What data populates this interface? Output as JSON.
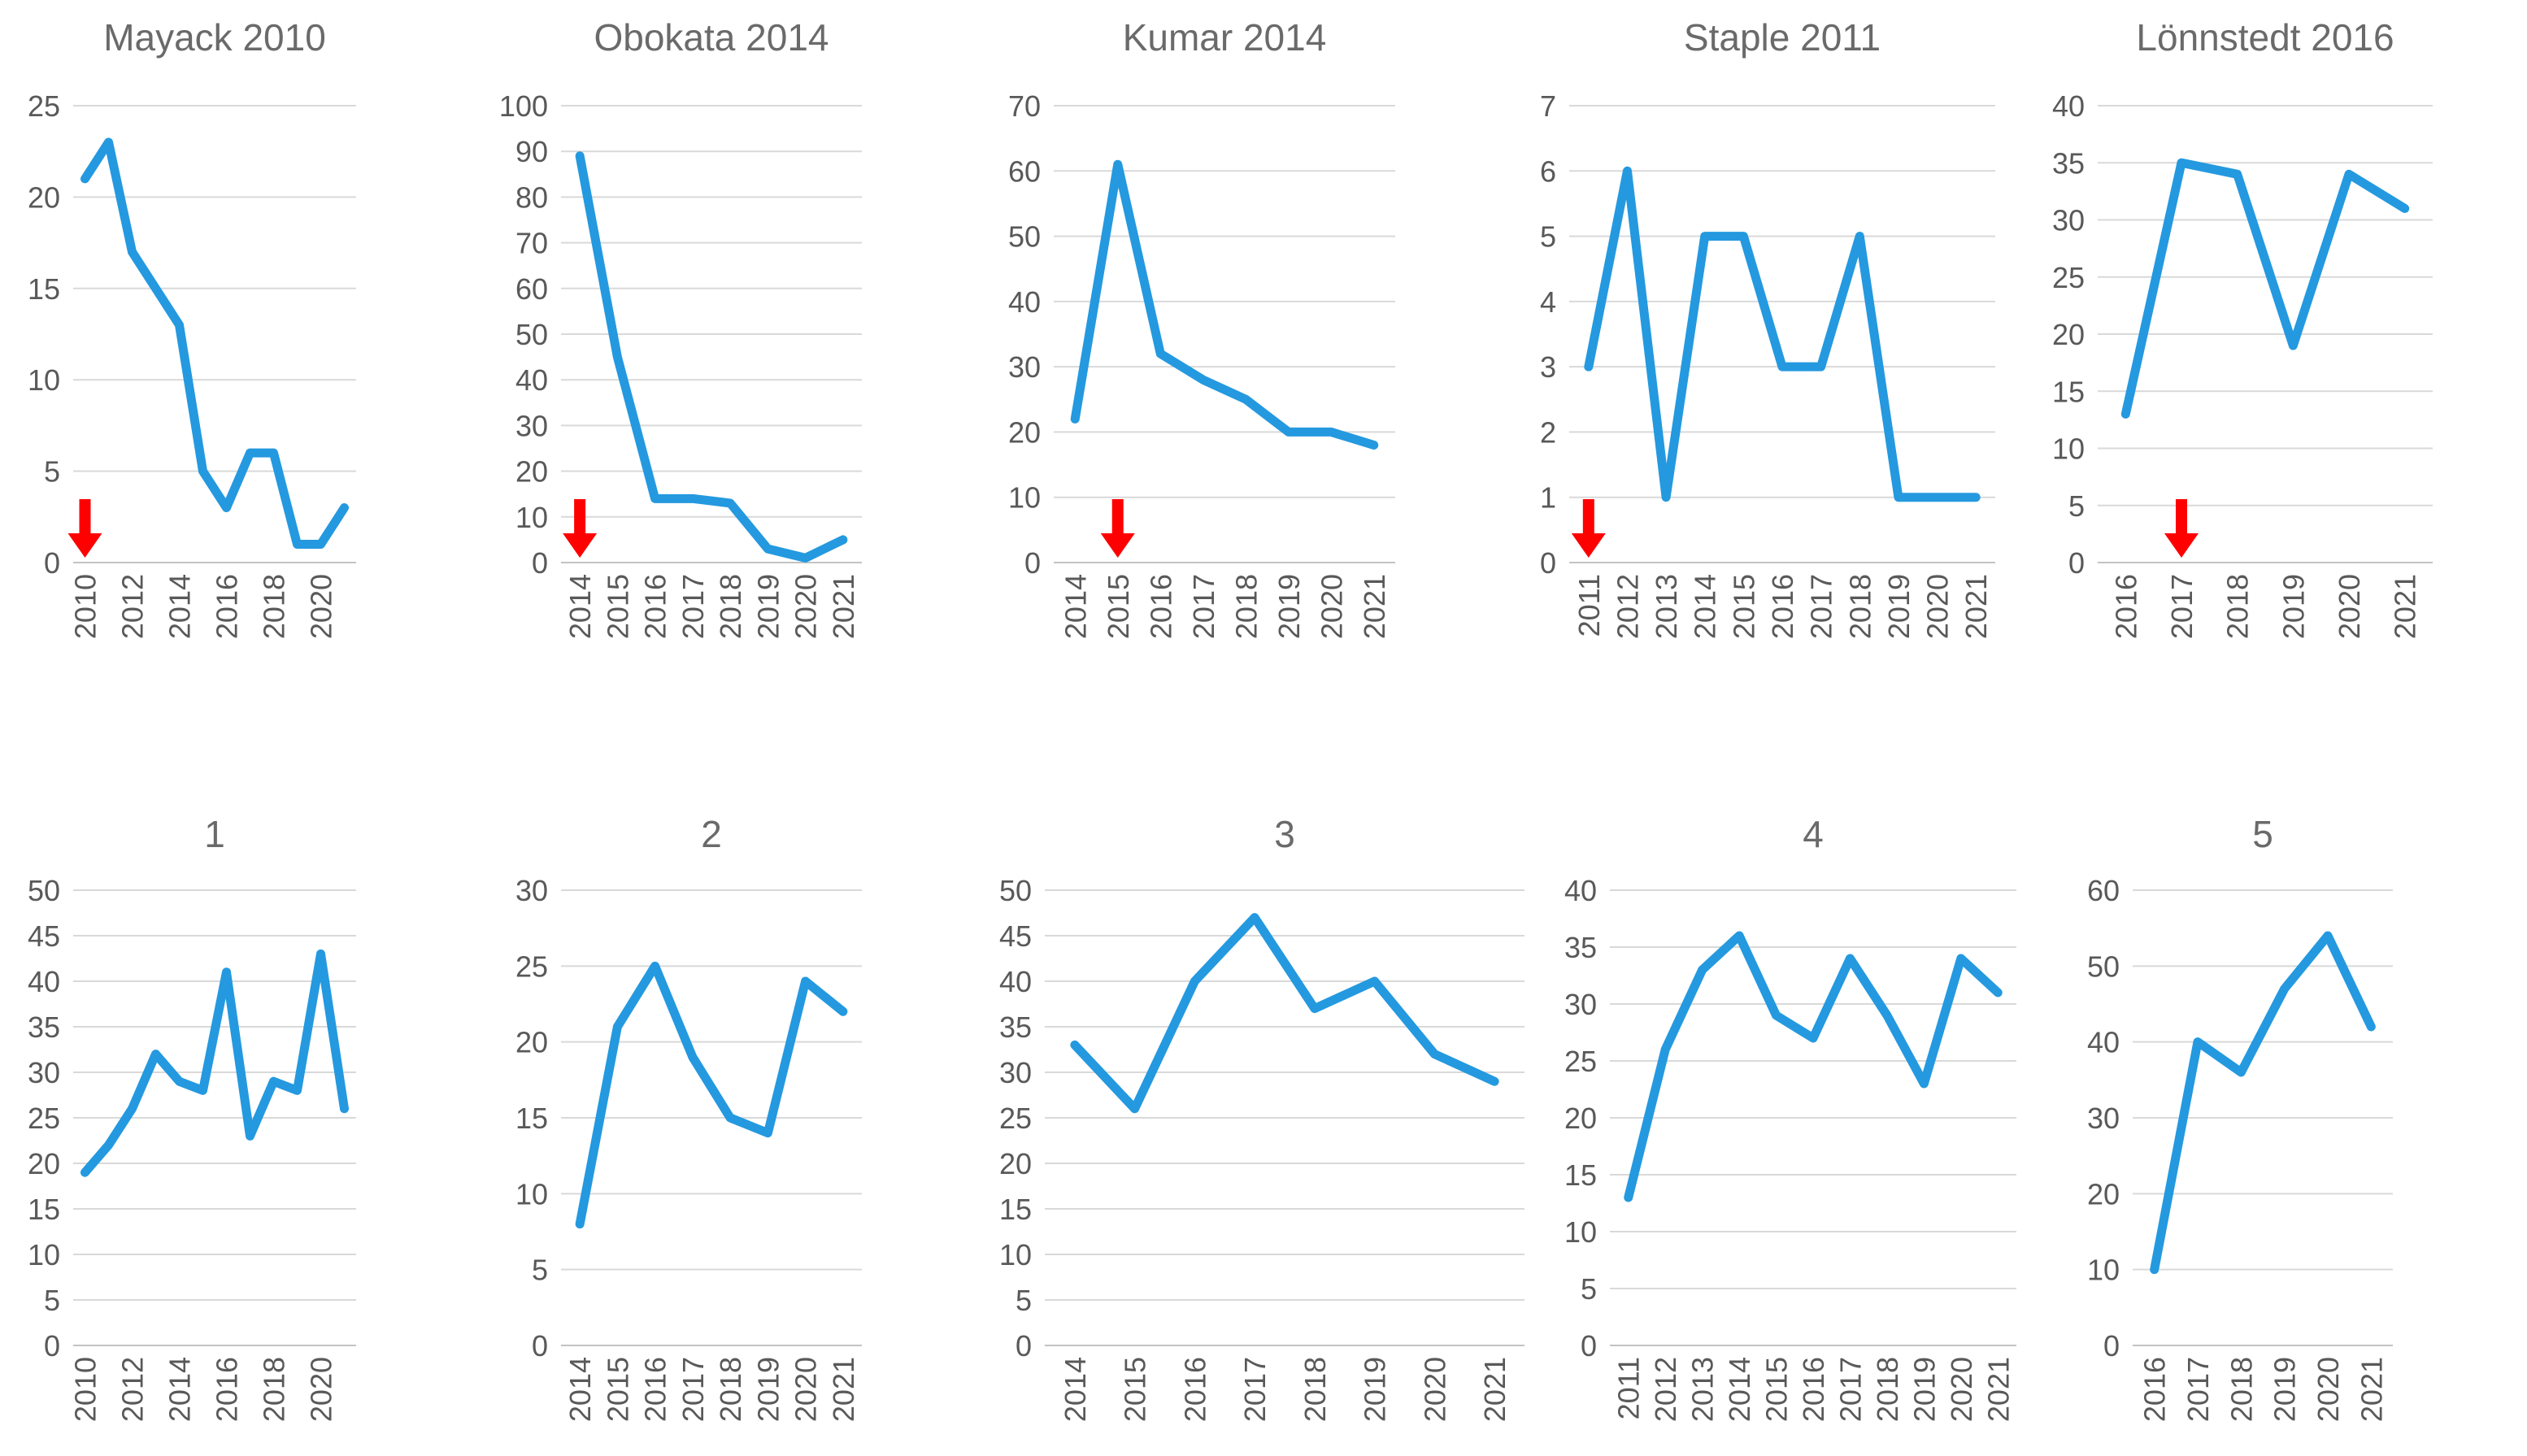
{
  "figure": {
    "description": "Grid of ten small line charts; top row shows citation counts of five retracted papers (red arrow marks retraction year), bottom row shows five numbered control charts"
  },
  "colors": {
    "line": "#2499df",
    "arrow": "#ff0000",
    "grid": "#d9d9d9",
    "zero_axis": "#c3c3c3",
    "tick_text": "#595959",
    "title_text": "#6a6a6a",
    "background": "#ffffff"
  },
  "chart_data": [
    {
      "id": "mayack-2010",
      "type": "line",
      "title": "Mayack 2010",
      "x": [
        2010,
        2011,
        2012,
        2013,
        2014,
        2015,
        2016,
        2017,
        2018,
        2019,
        2020,
        2021
      ],
      "values": [
        21,
        23,
        17,
        15,
        13,
        5,
        3,
        6,
        6,
        1,
        1,
        3
      ],
      "ylim": [
        0,
        25
      ],
      "ytick_step": 5,
      "xtick_every": 2,
      "grid": true,
      "legend": "none",
      "arrow_year": 2010
    },
    {
      "id": "obokata-2014",
      "type": "line",
      "title": "Obokata 2014",
      "x": [
        2014,
        2015,
        2016,
        2017,
        2018,
        2019,
        2020,
        2021
      ],
      "values": [
        89,
        45,
        14,
        14,
        13,
        3,
        1,
        5
      ],
      "ylim": [
        0,
        100
      ],
      "ytick_step": 10,
      "xtick_every": 1,
      "grid": true,
      "legend": "none",
      "arrow_year": 2014
    },
    {
      "id": "kumar-2014",
      "type": "line",
      "title": "Kumar 2014",
      "x": [
        2014,
        2015,
        2016,
        2017,
        2018,
        2019,
        2020,
        2021
      ],
      "values": [
        22,
        61,
        32,
        28,
        25,
        20,
        20,
        18
      ],
      "ylim": [
        0,
        70
      ],
      "ytick_step": 10,
      "xtick_every": 1,
      "grid": true,
      "legend": "none",
      "arrow_year": 2015
    },
    {
      "id": "staple-2011",
      "type": "line",
      "title": "Staple 2011",
      "x": [
        2011,
        2012,
        2013,
        2014,
        2015,
        2016,
        2017,
        2018,
        2019,
        2020,
        2021
      ],
      "values": [
        3,
        6,
        1,
        5,
        5,
        3,
        3,
        5,
        1,
        1,
        1
      ],
      "ylim": [
        0,
        7
      ],
      "ytick_step": 1,
      "xtick_every": 1,
      "grid": true,
      "legend": "none",
      "arrow_year": 2011
    },
    {
      "id": "lonnstedt-2016",
      "type": "line",
      "title": "Lönnstedt 2016",
      "x": [
        2016,
        2017,
        2018,
        2019,
        2020,
        2021
      ],
      "values": [
        13,
        35,
        34,
        19,
        34,
        31
      ],
      "ylim": [
        0,
        40
      ],
      "ytick_step": 5,
      "xtick_every": 1,
      "grid": true,
      "legend": "none",
      "arrow_year": 2017
    },
    {
      "id": "control-1",
      "type": "line",
      "title": "1",
      "x": [
        2010,
        2011,
        2012,
        2013,
        2014,
        2015,
        2016,
        2017,
        2018,
        2019,
        2020,
        2021
      ],
      "values": [
        19,
        22,
        26,
        32,
        29,
        28,
        41,
        23,
        29,
        28,
        43,
        26
      ],
      "ylim": [
        0,
        50
      ],
      "ytick_step": 5,
      "xtick_every": 2,
      "grid": true,
      "legend": "none",
      "arrow_year": null
    },
    {
      "id": "control-2",
      "type": "line",
      "title": "2",
      "x": [
        2014,
        2015,
        2016,
        2017,
        2018,
        2019,
        2020,
        2021
      ],
      "values": [
        8,
        21,
        25,
        19,
        15,
        14,
        24,
        22
      ],
      "ylim": [
        0,
        30
      ],
      "ytick_step": 5,
      "xtick_every": 1,
      "grid": true,
      "legend": "none",
      "arrow_year": null
    },
    {
      "id": "control-3",
      "type": "line",
      "title": "3",
      "x": [
        2014,
        2015,
        2016,
        2017,
        2018,
        2019,
        2020,
        2021
      ],
      "values": [
        33,
        26,
        40,
        47,
        37,
        40,
        32,
        29
      ],
      "ylim": [
        0,
        50
      ],
      "ytick_step": 5,
      "xtick_every": 1,
      "grid": true,
      "legend": "none",
      "arrow_year": null
    },
    {
      "id": "control-4",
      "type": "line",
      "title": "4",
      "x": [
        2011,
        2012,
        2013,
        2014,
        2015,
        2016,
        2017,
        2018,
        2019,
        2020,
        2021
      ],
      "values": [
        13,
        26,
        33,
        36,
        29,
        27,
        34,
        29,
        23,
        34,
        31
      ],
      "ylim": [
        0,
        40
      ],
      "ytick_step": 5,
      "xtick_every": 1,
      "grid": true,
      "legend": "none",
      "arrow_year": null
    },
    {
      "id": "control-5",
      "type": "line",
      "title": "5",
      "x": [
        2016,
        2017,
        2018,
        2019,
        2020,
        2021
      ],
      "values": [
        10,
        40,
        36,
        47,
        54,
        42
      ],
      "ylim": [
        0,
        60
      ],
      "ytick_step": 10,
      "grid": true,
      "legend": "none",
      "xtick_every": 1,
      "arrow_year": null
    }
  ]
}
